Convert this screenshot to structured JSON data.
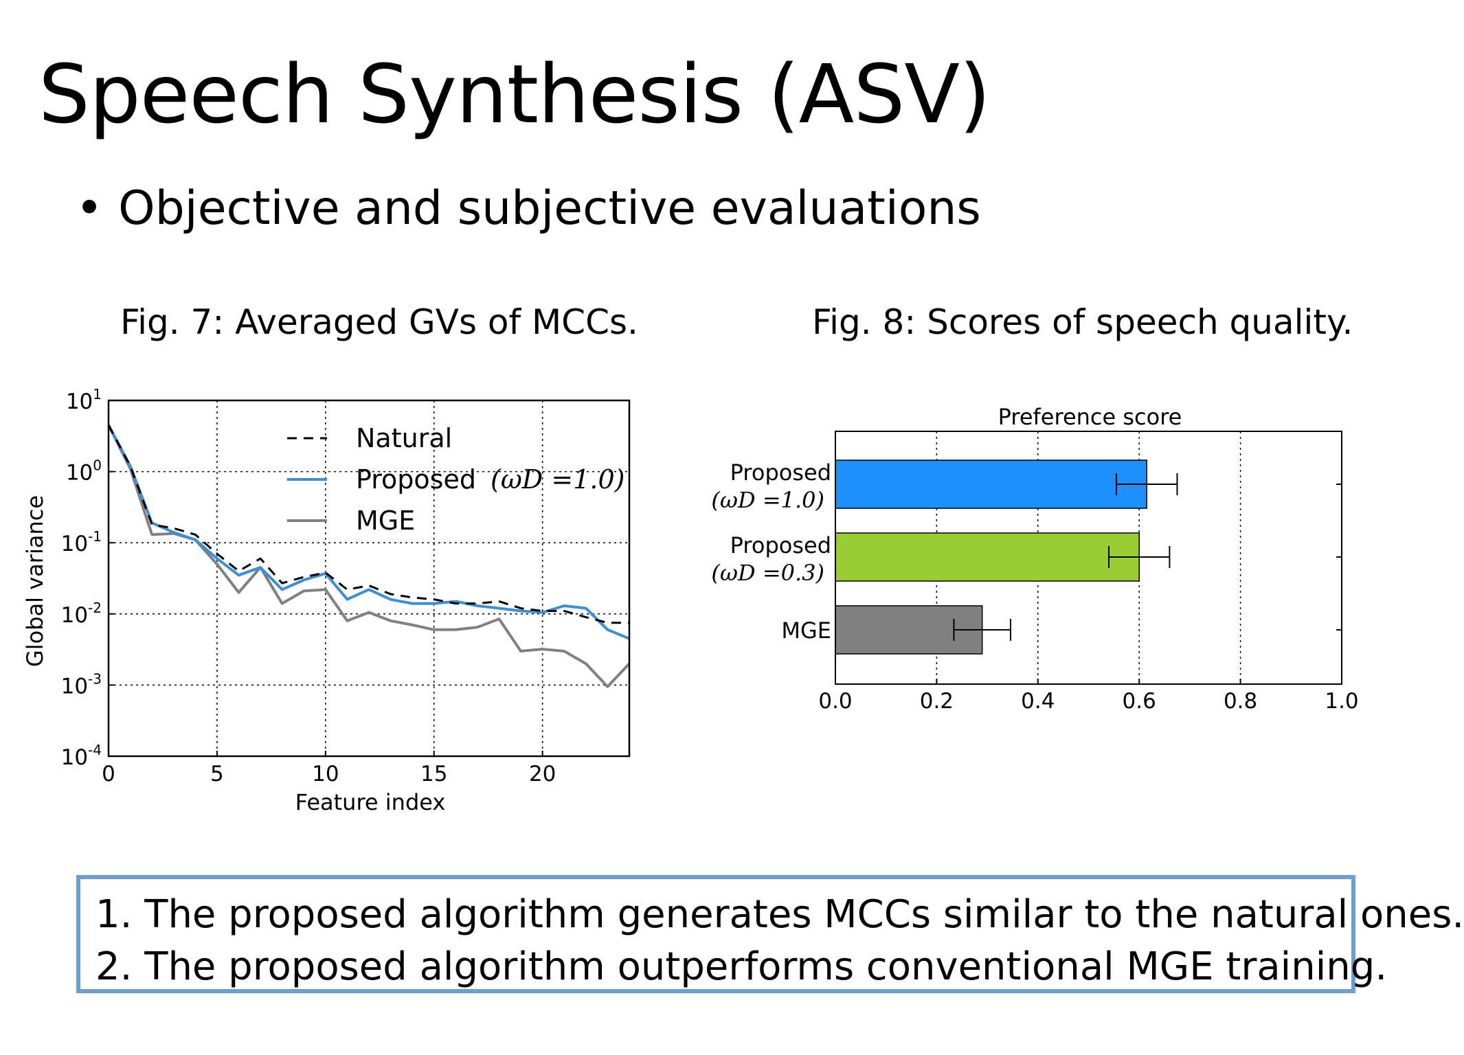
{
  "slide": {
    "title": "Speech Synthesis (ASV)",
    "bullet_marker": "•",
    "bullet": "Objective and subjective evaluations",
    "fig7_caption": "Fig. 7: Averaged GVs of MCCs.",
    "fig8_caption": "Fig. 8: Scores of speech quality.",
    "conclusions": [
      "1. The proposed algorithm generates MCCs similar to the natural ones.",
      "2. The proposed algorithm outperforms conventional MGE training."
    ]
  },
  "chart_data": [
    {
      "type": "line",
      "xlabel": "Feature index",
      "ylabel": "Global variance",
      "yscale": "log",
      "xlim": [
        0,
        24
      ],
      "ylim": [
        0.0001,
        10
      ],
      "xticks": [
        "0",
        "5",
        "10",
        "15",
        "20"
      ],
      "yticks": [
        {
          "base": "10",
          "exp": "1"
        },
        {
          "base": "10",
          "exp": "0"
        },
        {
          "base": "10",
          "exp": "-1"
        },
        {
          "base": "10",
          "exp": "-2"
        },
        {
          "base": "10",
          "exp": "-3"
        },
        {
          "base": "10",
          "exp": "-4"
        }
      ],
      "grid": true,
      "legend_position": "top-right",
      "x": [
        0,
        1,
        2,
        3,
        4,
        5,
        6,
        7,
        8,
        9,
        10,
        11,
        12,
        13,
        14,
        15,
        16,
        17,
        18,
        19,
        20,
        21,
        22,
        23,
        24
      ],
      "series": [
        {
          "name": "Natural",
          "color": "#000000",
          "style": "dashed",
          "values": [
            4.5,
            1.2,
            0.18,
            0.16,
            0.13,
            0.07,
            0.04,
            0.06,
            0.027,
            0.033,
            0.038,
            0.022,
            0.025,
            0.019,
            0.017,
            0.016,
            0.014,
            0.014,
            0.015,
            0.012,
            0.011,
            0.011,
            0.009,
            0.0075,
            0.0075
          ]
        },
        {
          "name": "Proposed",
          "name_math": "(ωD =1.0)",
          "color": "#3a8fd6",
          "style": "solid",
          "values": [
            4.5,
            1.2,
            0.19,
            0.14,
            0.11,
            0.06,
            0.035,
            0.045,
            0.022,
            0.03,
            0.037,
            0.016,
            0.022,
            0.016,
            0.014,
            0.014,
            0.015,
            0.013,
            0.012,
            0.011,
            0.0105,
            0.013,
            0.012,
            0.006,
            0.0045
          ]
        },
        {
          "name": "MGE",
          "color": "#808080",
          "style": "solid",
          "values": [
            4.5,
            1.1,
            0.13,
            0.135,
            0.11,
            0.05,
            0.02,
            0.045,
            0.014,
            0.021,
            0.022,
            0.008,
            0.0105,
            0.008,
            0.007,
            0.006,
            0.006,
            0.0065,
            0.0085,
            0.003,
            0.0032,
            0.003,
            0.002,
            0.00095,
            0.002
          ]
        }
      ]
    },
    {
      "type": "bar",
      "orientation": "horizontal",
      "title": "Preference score",
      "xlim": [
        0.0,
        1.0
      ],
      "xticks": [
        "0.0",
        "0.2",
        "0.4",
        "0.6",
        "0.8",
        "1.0"
      ],
      "grid": true,
      "categories": [
        {
          "label": "Proposed",
          "label_math": "(ωD =1.0)"
        },
        {
          "label": "Proposed",
          "label_math": "(ωD =0.3)"
        },
        {
          "label": "MGE",
          "label_math": ""
        }
      ],
      "values": [
        0.615,
        0.6,
        0.29
      ],
      "error": [
        0.06,
        0.06,
        0.056
      ],
      "colors": [
        "#1e90ff",
        "#9acd32",
        "#808080"
      ]
    }
  ]
}
